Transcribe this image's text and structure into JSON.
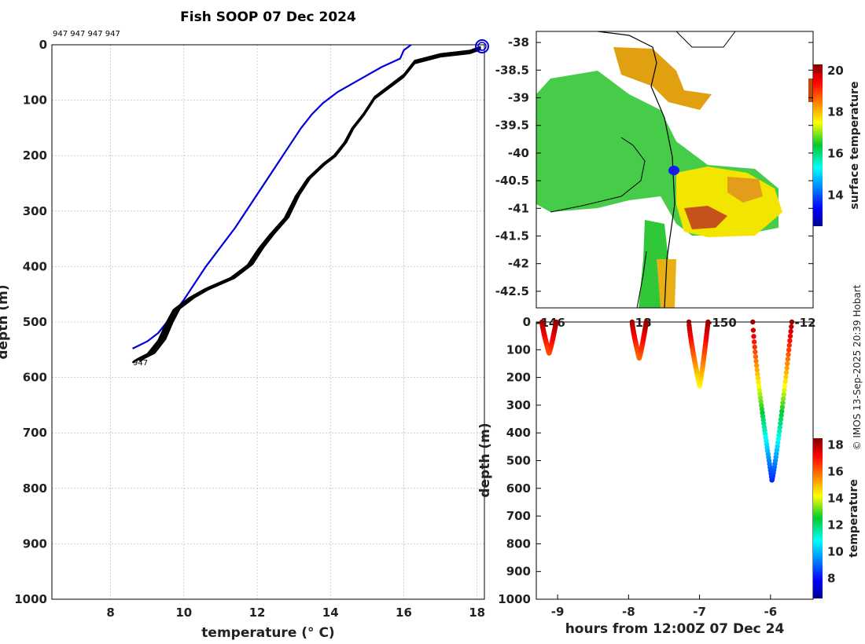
{
  "title": "Fish SOOP 07 Dec 2024",
  "credit": "© IMOS 13-Sep-2025 20:39 Hobart",
  "profile_labels": {
    "top": "947 947 947 947",
    "bottom": "947"
  },
  "colors": {
    "blue_profile": "#0000dd",
    "black_profiles": "#000000",
    "grid": "#b0b0b0"
  },
  "chart_data": [
    {
      "type": "line",
      "name": "temperature-depth-profiles",
      "xlabel": "temperature (° C)",
      "ylabel": "depth (m)",
      "xlim": [
        6.4,
        18.2
      ],
      "ylim": [
        1000,
        0
      ],
      "xticks": [
        8,
        10,
        12,
        14,
        16,
        18
      ],
      "yticks": [
        0,
        100,
        200,
        300,
        400,
        500,
        600,
        700,
        800,
        900,
        1000
      ],
      "series": [
        {
          "name": "blue",
          "color": "#0000dd",
          "points": [
            [
              16.2,
              0
            ],
            [
              16.0,
              10
            ],
            [
              15.9,
              25
            ],
            [
              15.4,
              40
            ],
            [
              15.0,
              55
            ],
            [
              14.6,
              70
            ],
            [
              14.2,
              85
            ],
            [
              13.8,
              105
            ],
            [
              13.5,
              125
            ],
            [
              13.2,
              150
            ],
            [
              12.9,
              180
            ],
            [
              12.6,
              210
            ],
            [
              12.2,
              250
            ],
            [
              11.8,
              290
            ],
            [
              11.4,
              330
            ],
            [
              11.0,
              365
            ],
            [
              10.6,
              400
            ],
            [
              10.3,
              430
            ],
            [
              10.0,
              460
            ],
            [
              9.6,
              495
            ],
            [
              9.3,
              520
            ],
            [
              9.0,
              535
            ],
            [
              8.6,
              548
            ]
          ]
        },
        {
          "name": "black",
          "color": "#000000",
          "points": [
            [
              18.1,
              5
            ],
            [
              17.8,
              12
            ],
            [
              17.0,
              18
            ],
            [
              16.3,
              30
            ],
            [
              16.0,
              55
            ],
            [
              15.6,
              75
            ],
            [
              15.2,
              95
            ],
            [
              14.9,
              125
            ],
            [
              14.6,
              150
            ],
            [
              14.4,
              175
            ],
            [
              14.1,
              200
            ],
            [
              13.8,
              215
            ],
            [
              13.4,
              240
            ],
            [
              13.1,
              270
            ],
            [
              12.8,
              310
            ],
            [
              12.4,
              340
            ],
            [
              12.1,
              365
            ],
            [
              11.8,
              395
            ],
            [
              11.3,
              420
            ],
            [
              10.6,
              440
            ],
            [
              10.2,
              455
            ],
            [
              9.8,
              475
            ],
            [
              9.6,
              500
            ],
            [
              9.4,
              530
            ],
            [
              9.1,
              555
            ],
            [
              8.8,
              565
            ],
            [
              8.7,
              570
            ]
          ]
        }
      ]
    },
    {
      "type": "map",
      "name": "sea-surface-temperature-map",
      "ylim": [
        -42.8,
        -37.8
      ],
      "yticks": [
        -38,
        -38.5,
        -39,
        -39.5,
        -40,
        -40.5,
        -41,
        -41.5,
        -42,
        -42.5
      ],
      "colorbar": {
        "label": "surface temperature",
        "range": [
          12.5,
          20.3
        ],
        "ticks": [
          14,
          16,
          18,
          20
        ]
      },
      "ship_marker": {
        "lat": -40.3
      }
    },
    {
      "type": "scatter",
      "name": "depth-time-section",
      "xlabel": "hours from 12:00Z 07 Dec 24",
      "ylabel": "depth (m)",
      "xlim": [
        -9.3,
        -5.4
      ],
      "ylim": [
        1000,
        0
      ],
      "xticks": [
        -9,
        -8,
        -7,
        -6
      ],
      "yticks": [
        0,
        100,
        200,
        300,
        400,
        500,
        600,
        700,
        800,
        900,
        1000
      ],
      "top_ticks": [
        "-146",
        "-18",
        "-150",
        "-12"
      ],
      "casts": [
        {
          "t_start": -9.22,
          "t_bottom": -9.12,
          "t_end": -9.02,
          "max_depth": 112
        },
        {
          "t_start": -7.95,
          "t_bottom": -7.85,
          "t_end": -7.75,
          "max_depth": 130
        },
        {
          "t_start": -7.15,
          "t_bottom": -7.0,
          "t_end": -6.88,
          "max_depth": 230
        },
        {
          "t_start": -6.25,
          "t_bottom": -5.98,
          "t_end": -5.7,
          "max_depth": 570
        }
      ],
      "colorbar": {
        "label": "temperature",
        "range": [
          6.5,
          18.5
        ],
        "ticks": [
          8,
          10,
          12,
          14,
          16,
          18
        ]
      }
    }
  ]
}
